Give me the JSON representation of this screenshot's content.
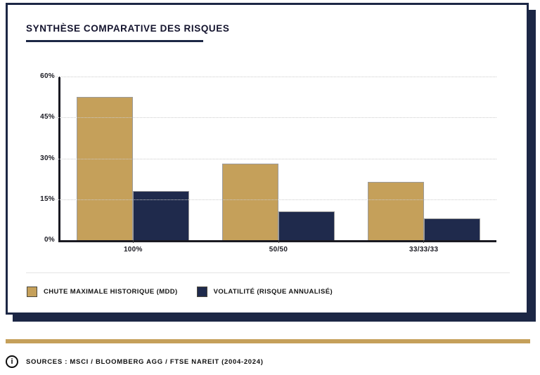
{
  "card": {
    "title": "SYNTHÈSE COMPARATIVE DES RISQUES"
  },
  "colors": {
    "navy_frame": "#1C2745",
    "gold_accent": "#C5A05A",
    "bar_gold": "#C5A05A",
    "bar_navy": "#1F2A4C",
    "grid": "#CBCBCB",
    "axis": "#1A1A22"
  },
  "chart_data": {
    "type": "bar",
    "title": "SYNTHÈSE COMPARATIVE DES RISQUES",
    "categories": [
      "100%",
      "50/50",
      "33/33/33"
    ],
    "series": [
      {
        "name": "CHUTE MAXIMALE HISTORIQUE (MDD)",
        "color": "#C5A05A",
        "values": [
          52.5,
          28,
          21.5
        ]
      },
      {
        "name": "VOLATILITÉ (RISQUE ANNUALISÉ)",
        "color": "#1F2A4C",
        "values": [
          18,
          10.5,
          8
        ]
      }
    ],
    "xlabel": "",
    "ylabel": "",
    "ylim": [
      0,
      60
    ],
    "yticks": [
      0,
      15,
      30,
      45,
      60
    ],
    "ytick_labels": [
      "0%",
      "15%",
      "30%",
      "45%",
      "60%"
    ],
    "grid": "horizontal-dotted",
    "legend_position": "bottom-left"
  },
  "footer": {
    "info_icon_glyph": "i",
    "text": "SOURCES : MSCI / BLOOMBERG AGG / FTSE NAREIT (2004-2024)"
  }
}
